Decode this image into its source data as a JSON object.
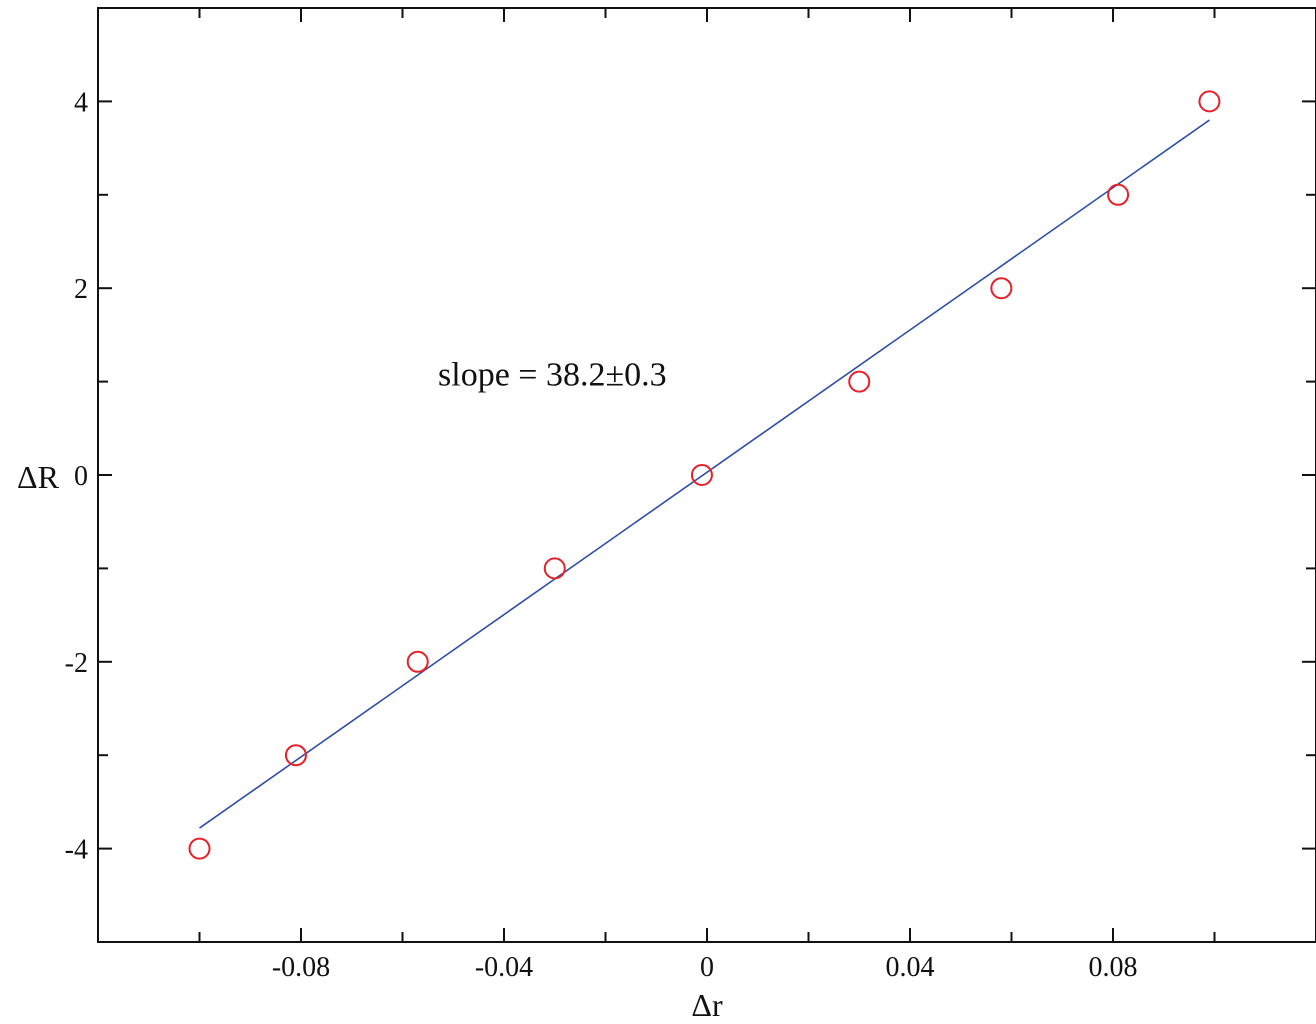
{
  "chart_data": {
    "type": "scatter",
    "xlabel": "Δr",
    "ylabel": "ΔR",
    "xlim": [
      -0.12,
      0.12
    ],
    "ylim": [
      -5,
      5
    ],
    "x_ticks": [
      {
        "value": -0.08,
        "label": "-0.08"
      },
      {
        "value": -0.04,
        "label": "-0.04"
      },
      {
        "value": 0,
        "label": "0"
      },
      {
        "value": 0.04,
        "label": "0.04"
      },
      {
        "value": 0.08,
        "label": "0.08"
      }
    ],
    "x_minor_ticks": [
      -0.1,
      -0.06,
      -0.02,
      0.02,
      0.06,
      0.1
    ],
    "y_ticks": [
      {
        "value": -4,
        "label": "-4"
      },
      {
        "value": -2,
        "label": "-2"
      },
      {
        "value": 0,
        "label": "0"
      },
      {
        "value": 2,
        "label": "2"
      },
      {
        "value": 4,
        "label": "4"
      }
    ],
    "y_minor_ticks": [
      -3,
      -1,
      1,
      3
    ],
    "series": [
      {
        "kind": "points",
        "marker": "open-circle",
        "color": "#e8202a",
        "points": [
          {
            "x": -0.1,
            "y": -4
          },
          {
            "x": -0.081,
            "y": -3
          },
          {
            "x": -0.057,
            "y": -2
          },
          {
            "x": -0.03,
            "y": -1
          },
          {
            "x": -0.001,
            "y": 0
          },
          {
            "x": 0.03,
            "y": 1
          },
          {
            "x": 0.058,
            "y": 2
          },
          {
            "x": 0.081,
            "y": 3
          },
          {
            "x": 0.099,
            "y": 4
          }
        ]
      },
      {
        "kind": "fit-line",
        "color": "#2f4fa8",
        "x": [
          -0.1,
          0.099
        ],
        "y": [
          -3.78,
          3.8
        ]
      }
    ],
    "annotations": [
      {
        "text": "slope = 38.2±0.3",
        "x": -0.053,
        "y": 1.0
      }
    ],
    "grid": false,
    "legend": "none"
  }
}
